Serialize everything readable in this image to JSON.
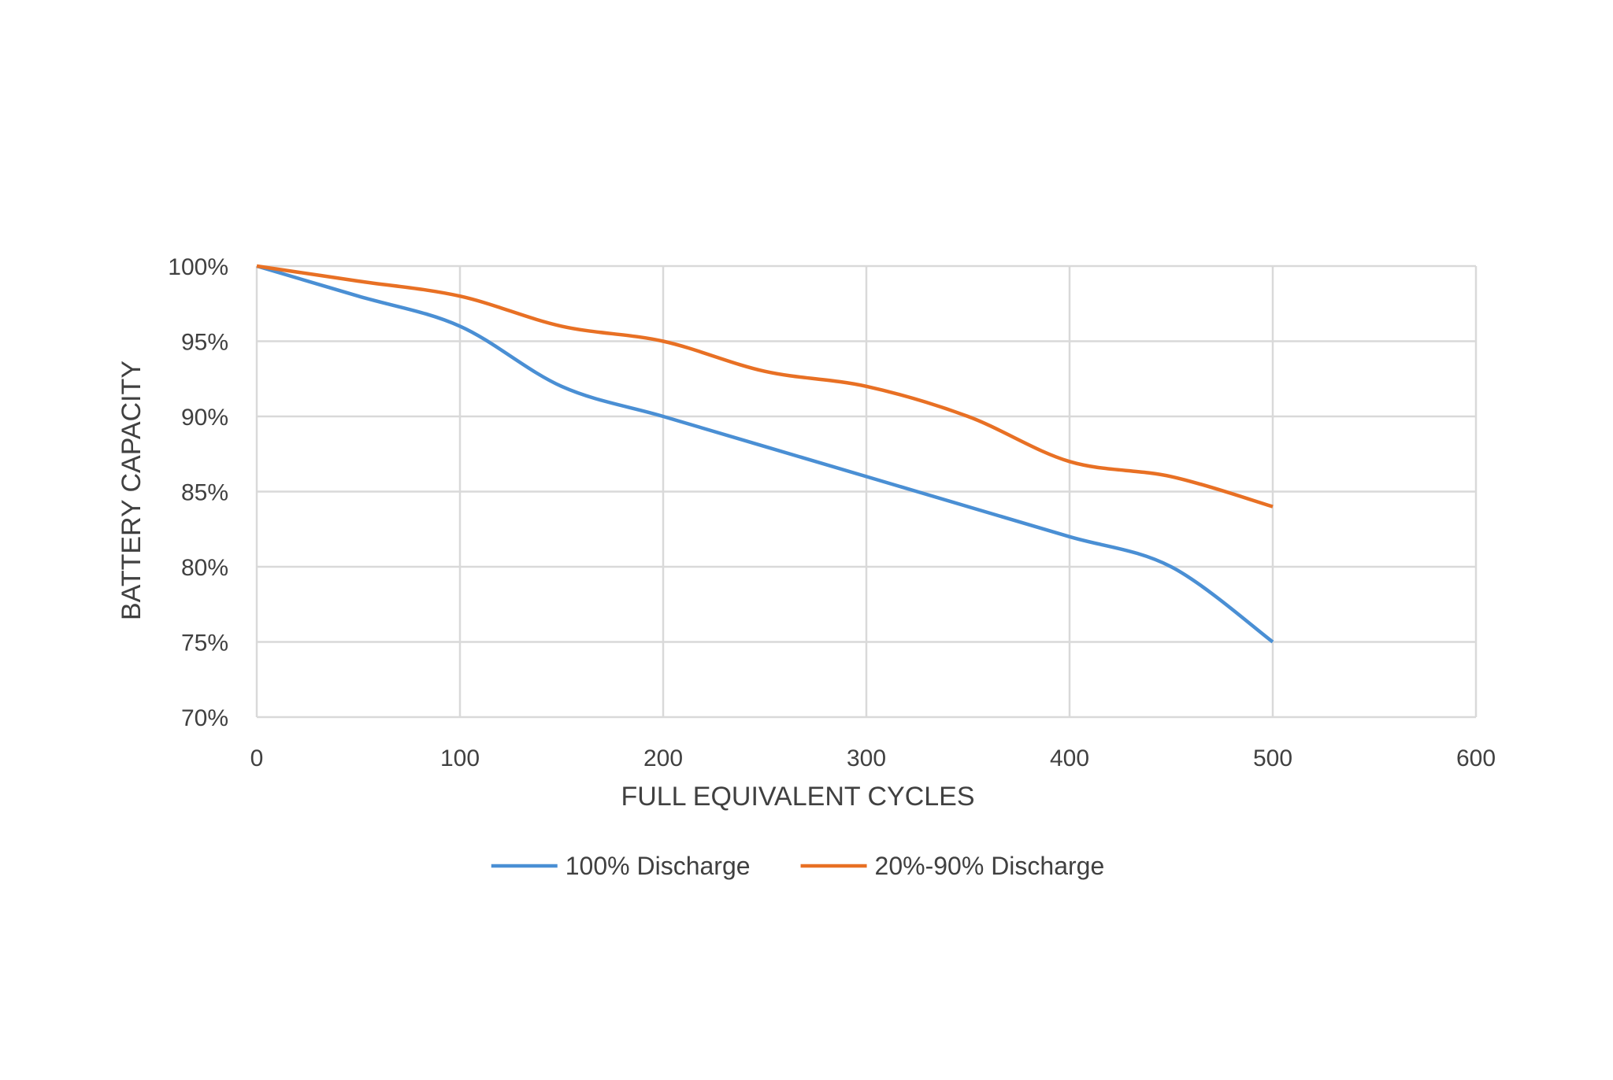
{
  "chart_data": {
    "type": "line",
    "title": "",
    "xlabel": "FULL EQUIVALENT CYCLES",
    "ylabel": "BATTERY CAPACITY",
    "xlim": [
      0,
      600
    ],
    "ylim": [
      70,
      100
    ],
    "x_ticks": [
      "0",
      "100",
      "200",
      "300",
      "400",
      "500",
      "600"
    ],
    "y_ticks": [
      "70%",
      "75%",
      "80%",
      "85%",
      "90%",
      "95%",
      "100%"
    ],
    "grid": true,
    "legend_position": "bottom",
    "series": [
      {
        "name": "100% Discharge",
        "color": "#4a8fd4",
        "x": [
          0,
          50,
          100,
          150,
          200,
          250,
          300,
          350,
          400,
          450,
          500
        ],
        "y": [
          100,
          98,
          96,
          92,
          90,
          88,
          86,
          84,
          82,
          80,
          75
        ]
      },
      {
        "name": "20%-90% Discharge",
        "color": "#e87024",
        "x": [
          0,
          50,
          100,
          150,
          200,
          250,
          300,
          350,
          400,
          450,
          500
        ],
        "y": [
          100,
          99,
          98,
          96,
          95,
          93,
          92,
          90,
          87,
          86,
          84
        ]
      }
    ]
  }
}
